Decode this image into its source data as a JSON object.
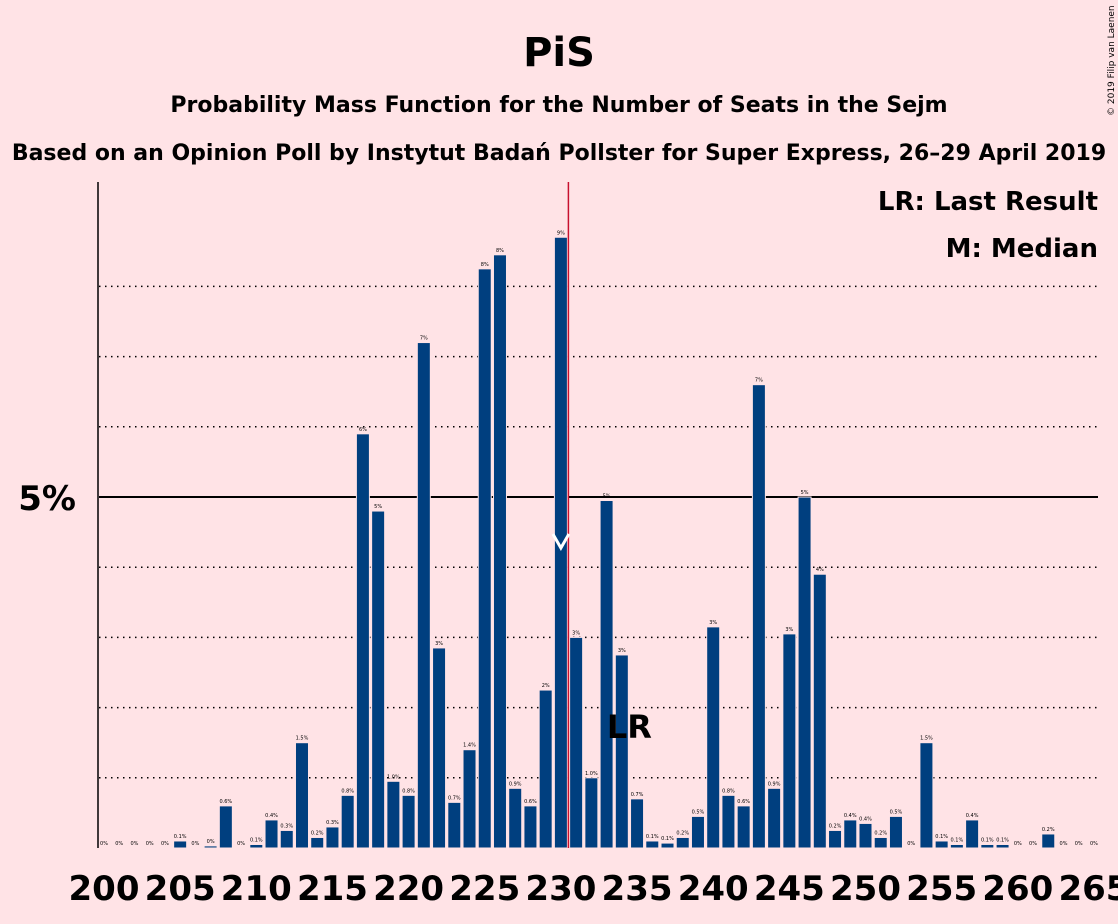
{
  "title": "PiS",
  "subtitle": "Probability Mass Function for the Number of Seats in the Sejm",
  "subtitle2": "Based on an Opinion Poll by Instytut Badań Pollster for Super Express, 26–29 April 2019",
  "copyright": "© 2019 Filip van Laenen",
  "legend": {
    "lr": "LR: Last Result",
    "median": "M: Median"
  },
  "colors": {
    "background": "#FFE3E6",
    "bar": "#003F7F",
    "last_result_line": "#C8102E"
  },
  "chart_data": {
    "type": "bar",
    "x_range": [
      200,
      265
    ],
    "x_ticks": [
      200,
      205,
      210,
      215,
      220,
      225,
      230,
      235,
      240,
      245,
      250,
      255,
      260,
      265
    ],
    "y_tick_labels": [
      {
        "value": 5,
        "label": "5%"
      }
    ],
    "y_dotted_gridlines": [
      1,
      2,
      3,
      4,
      6,
      7,
      8
    ],
    "ylim": [
      0,
      9.6
    ],
    "last_result": 230,
    "last_result_label": "LR",
    "median": 230,
    "x": [
      200,
      201,
      202,
      203,
      204,
      205,
      206,
      207,
      208,
      209,
      210,
      211,
      212,
      213,
      214,
      215,
      216,
      217,
      218,
      219,
      220,
      221,
      222,
      223,
      224,
      225,
      226,
      227,
      228,
      229,
      230,
      231,
      232,
      233,
      234,
      235,
      236,
      237,
      238,
      239,
      240,
      241,
      242,
      243,
      244,
      245,
      246,
      247,
      248,
      249,
      250,
      251,
      252,
      253,
      254,
      255,
      256,
      257,
      258,
      259,
      260,
      261,
      262,
      263,
      264,
      265
    ],
    "values": [
      0.0,
      0.0,
      0.0,
      0.0,
      0.0,
      0.1,
      0.0,
      0.03,
      0.6,
      0.0,
      0.05,
      0.4,
      0.25,
      1.5,
      0.15,
      0.3,
      0.75,
      5.9,
      4.8,
      0.95,
      0.75,
      7.2,
      2.85,
      0.65,
      1.4,
      8.25,
      8.45,
      0.85,
      0.6,
      2.25,
      8.7,
      3.0,
      1.0,
      4.95,
      2.75,
      0.7,
      0.1,
      0.07,
      0.15,
      0.45,
      3.15,
      0.75,
      0.6,
      6.6,
      0.85,
      3.05,
      5.0,
      3.9,
      0.25,
      0.4,
      0.35,
      0.15,
      0.45,
      0.0,
      1.5,
      0.1,
      0.05,
      0.4,
      0.05,
      0.05,
      0.0,
      0.0,
      0.2,
      0.0,
      0.0,
      0.0
    ],
    "labels": [
      "0%",
      "0%",
      "0%",
      "0%",
      "0%",
      "0.1%",
      "0%",
      "0%",
      "0.6%",
      "0%",
      "0.1%",
      "0.4%",
      "0.3%",
      "1.5%",
      "0.2%",
      "0.3%",
      "0.8%",
      "6%",
      "5%",
      "1.0%",
      "0.8%",
      "7%",
      "3%",
      "0.7%",
      "1.4%",
      "8%",
      "8%",
      "0.9%",
      "0.6%",
      "2%",
      "9%",
      "3%",
      "1.0%",
      "5%",
      "3%",
      "0.7%",
      "0.1%",
      "0.1%",
      "0.2%",
      "0.5%",
      "3%",
      "0.8%",
      "0.6%",
      "7%",
      "0.9%",
      "3%",
      "5%",
      "4%",
      "0.2%",
      "0.4%",
      "0.4%",
      "0.2%",
      "0.5%",
      "0%",
      "1.5%",
      "0.1%",
      "0.1%",
      "0.4%",
      "0.1%",
      "0.1%",
      "0%",
      "0%",
      "0.2%",
      "0%",
      "0%",
      "0%"
    ]
  }
}
